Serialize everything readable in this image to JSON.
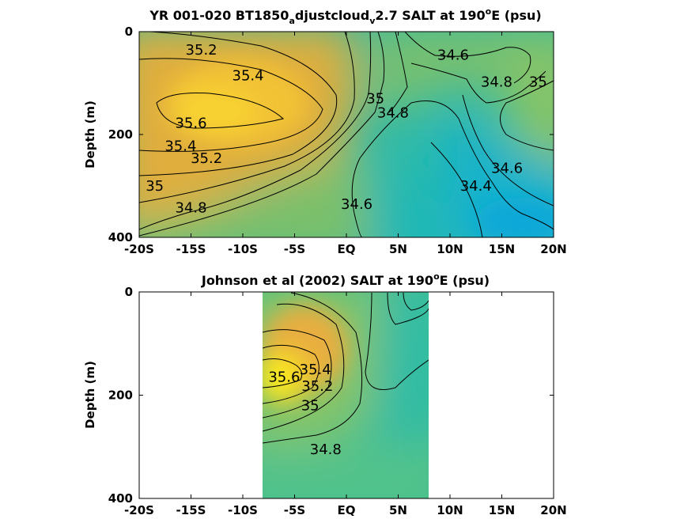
{
  "chart_data": [
    {
      "type": "contour",
      "title_parts": {
        "main": "YR 001-020 BT1850",
        "sub1": "a",
        "mid": "djustcloud",
        "sub2": "v",
        "tail": "2.7 SALT at 190",
        "sup": "o",
        "end": "E (psu)"
      },
      "ylabel": "Depth (m)",
      "x_ticks": [
        "-20S",
        "-15S",
        "-10S",
        "-5S",
        "EQ",
        "5N",
        "10N",
        "15N",
        "20N"
      ],
      "y_ticks": [
        "0",
        "200",
        "400"
      ],
      "xlim": [
        -20,
        20
      ],
      "ylim": [
        0,
        400
      ],
      "y_reversed": true,
      "contour_levels": [
        34.4,
        34.6,
        34.8,
        35,
        35.2,
        35.4,
        35.6
      ],
      "contour_labels": [
        {
          "text": "35.2",
          "x": -14,
          "y": 35
        },
        {
          "text": "35.4",
          "x": -9.5,
          "y": 85
        },
        {
          "text": "35.6",
          "x": -15,
          "y": 178
        },
        {
          "text": "35.4",
          "x": -16,
          "y": 222
        },
        {
          "text": "35.2",
          "x": -13.5,
          "y": 246
        },
        {
          "text": "35",
          "x": -18.5,
          "y": 300
        },
        {
          "text": "34.8",
          "x": -15,
          "y": 342
        },
        {
          "text": "35",
          "x": 2.8,
          "y": 130
        },
        {
          "text": "34.8",
          "x": 4.5,
          "y": 158
        },
        {
          "text": "34.6",
          "x": 10.3,
          "y": 45
        },
        {
          "text": "34.8",
          "x": 14.5,
          "y": 98
        },
        {
          "text": "35",
          "x": 18.5,
          "y": 98
        },
        {
          "text": "34.6",
          "x": 15.5,
          "y": 265
        },
        {
          "text": "34.4",
          "x": 12.5,
          "y": 300
        },
        {
          "text": "34.6",
          "x": 1,
          "y": 335
        }
      ]
    },
    {
      "type": "contour",
      "title_parts": {
        "main": "Johnson et al (2002) SALT at 190",
        "sup": "o",
        "end": "E (psu)"
      },
      "ylabel": "Depth (m)",
      "x_ticks": [
        "-20S",
        "-15S",
        "-10S",
        "-5S",
        "EQ",
        "5N",
        "10N",
        "15N",
        "20N"
      ],
      "y_ticks": [
        "0",
        "200",
        "400"
      ],
      "xlim": [
        -20,
        20
      ],
      "ylim": [
        0,
        400
      ],
      "y_reversed": true,
      "data_extent_x": [
        -8,
        8
      ],
      "contour_levels": [
        34.8,
        35,
        35.2,
        35.4,
        35.6
      ],
      "contour_labels": [
        {
          "text": "35.4",
          "x": -3,
          "y": 150
        },
        {
          "text": "35.2",
          "x": -2.8,
          "y": 182
        },
        {
          "text": "35.6",
          "x": -6,
          "y": 165
        },
        {
          "text": "35",
          "x": -3.5,
          "y": 220
        },
        {
          "text": "34.8",
          "x": -2,
          "y": 305
        }
      ]
    }
  ]
}
